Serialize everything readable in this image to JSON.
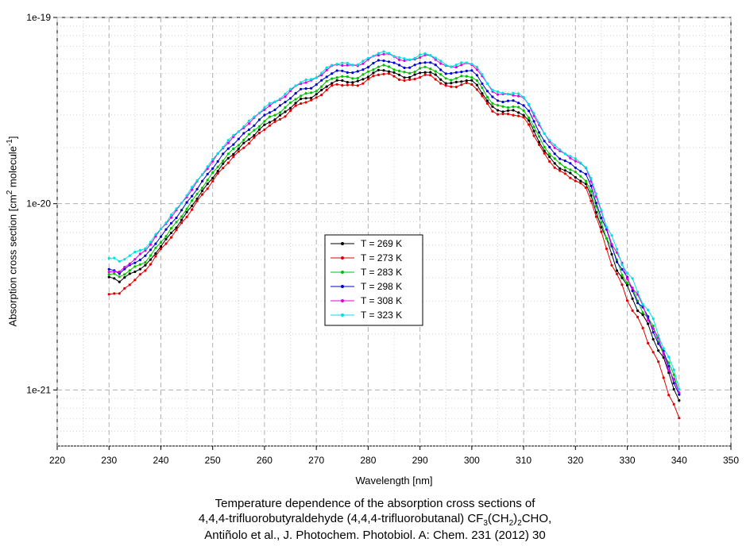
{
  "chart_data": {
    "type": "line",
    "xlabel": "Wavelength [nm]",
    "ylabel": {
      "prefix": "Absorption cross section [cm",
      "sup1": "2",
      "middle": " molecule",
      "sup2": "-1",
      "suffix": "]"
    },
    "xlim": [
      220,
      350
    ],
    "ylim": [
      5e-22,
      1e-19
    ],
    "yscale": "log",
    "xticks": [
      220,
      230,
      240,
      250,
      260,
      270,
      280,
      290,
      300,
      310,
      320,
      330,
      340,
      350
    ],
    "yticks": [
      {
        "value": 1e-21,
        "label": "1e-21"
      },
      {
        "value": 1e-20,
        "label": "1e-20"
      },
      {
        "value": 1e-19,
        "label": "1e-19"
      }
    ],
    "legend_position": "center-left",
    "grid": true,
    "x": [
      230,
      231,
      232,
      233,
      234,
      235,
      236,
      237,
      238,
      239,
      240,
      241,
      242,
      243,
      244,
      245,
      246,
      247,
      248,
      249,
      250,
      251,
      252,
      253,
      254,
      255,
      256,
      257,
      258,
      259,
      260,
      261,
      262,
      263,
      264,
      265,
      266,
      267,
      268,
      269,
      270,
      271,
      272,
      273,
      274,
      275,
      276,
      277,
      278,
      279,
      280,
      281,
      282,
      283,
      284,
      285,
      286,
      287,
      288,
      289,
      290,
      291,
      292,
      293,
      294,
      295,
      296,
      297,
      298,
      299,
      300,
      301,
      302,
      303,
      304,
      305,
      306,
      307,
      308,
      309,
      310,
      311,
      312,
      313,
      314,
      315,
      316,
      317,
      318,
      319,
      320,
      321,
      322,
      323,
      324,
      325,
      326,
      327,
      328,
      329,
      330,
      331,
      332,
      333,
      334,
      335,
      336,
      337,
      338,
      339,
      340
    ],
    "reference": [
      4e-21,
      4e-21,
      3.9e-21,
      4.1e-21,
      4.3e-21,
      4.5e-21,
      4.7e-21,
      4.9e-21,
      5.3e-21,
      5.8e-21,
      6.3e-21,
      6.8e-21,
      7.4e-21,
      8e-21,
      8.7e-21,
      9.5e-21,
      1.04e-20,
      1.14e-20,
      1.24e-20,
      1.35e-20,
      1.47e-20,
      1.6e-20,
      1.73e-20,
      1.86e-20,
      1.98e-20,
      2.1e-20,
      2.23e-20,
      2.36e-20,
      2.5e-20,
      2.65e-20,
      2.8e-20,
      2.93e-20,
      3.03e-20,
      3.15e-20,
      3.3e-20,
      3.5e-20,
      3.7e-20,
      3.85e-20,
      3.92e-20,
      3.97e-20,
      4.1e-20,
      4.3e-20,
      4.55e-20,
      4.75e-20,
      4.85e-20,
      4.85e-20,
      4.82e-20,
      4.78e-20,
      4.8e-20,
      4.95e-20,
      5.15e-20,
      5.35e-20,
      5.5e-20,
      5.55e-20,
      5.5e-20,
      5.35e-20,
      5.2e-20,
      5.1e-20,
      5.1e-20,
      5.2e-20,
      5.35e-20,
      5.45e-20,
      5.4e-20,
      5.2e-20,
      4.95e-20,
      4.75e-20,
      4.7e-20,
      4.75e-20,
      4.85e-20,
      4.9e-20,
      4.85e-20,
      4.6e-20,
      4.2e-20,
      3.8e-20,
      3.5e-20,
      3.38e-20,
      3.35e-20,
      3.35e-20,
      3.35e-20,
      3.3e-20,
      3.2e-20,
      2.95e-20,
      2.6e-20,
      2.3e-20,
      2.05e-20,
      1.88e-20,
      1.75e-20,
      1.66e-20,
      1.6e-20,
      1.54e-20,
      1.48e-20,
      1.42e-20,
      1.35e-20,
      1.18e-20,
      9.8e-21,
      8.2e-21,
      6.9e-21,
      5.9e-21,
      5.1e-21,
      4.5e-21,
      4e-21,
      3.6e-21,
      3.2e-21,
      2.9e-21,
      2.6e-21,
      2.3e-21,
      2e-21,
      1.75e-21,
      1.5e-21,
      1.3e-21,
      1.1e-21
    ],
    "series": [
      {
        "name": "T = 269 K",
        "color": "#000000",
        "scale": 0.94,
        "low_scale": 1.0,
        "tail_scale": 0.8
      },
      {
        "name": "T = 273 K",
        "color": "#e00000",
        "scale": 0.9,
        "low_scale": 0.82,
        "tail_scale": 0.62
      },
      {
        "name": "T = 283 K",
        "color": "#00c000",
        "scale": 0.99,
        "low_scale": 1.05,
        "tail_scale": 0.9
      },
      {
        "name": "T = 298 K",
        "color": "#0000d0",
        "scale": 1.06,
        "low_scale": 1.1,
        "tail_scale": 0.86
      },
      {
        "name": "T = 308 K",
        "color": "#e000e0",
        "scale": 1.15,
        "low_scale": 1.08,
        "tail_scale": 0.85
      },
      {
        "name": "T = 323 K",
        "color": "#00e0e0",
        "scale": 1.17,
        "low_scale": 1.28,
        "tail_scale": 0.95
      }
    ]
  },
  "caption": {
    "line1": "Temperature dependence of the absorption cross sections of",
    "line2_prefix": "4,4,4-trifluorobutyraldehyde (4,4,4-trifluorobutanal) CF",
    "line2_sub1": "3",
    "line2_mid": "(CH",
    "line2_sub2": "2",
    "line2_sub3": "2",
    "line2_suffix": "CHO,",
    "line3": "Antiñolo et al., J. Photochem. Photobiol. A: Chem. 231 (2012) 30"
  }
}
